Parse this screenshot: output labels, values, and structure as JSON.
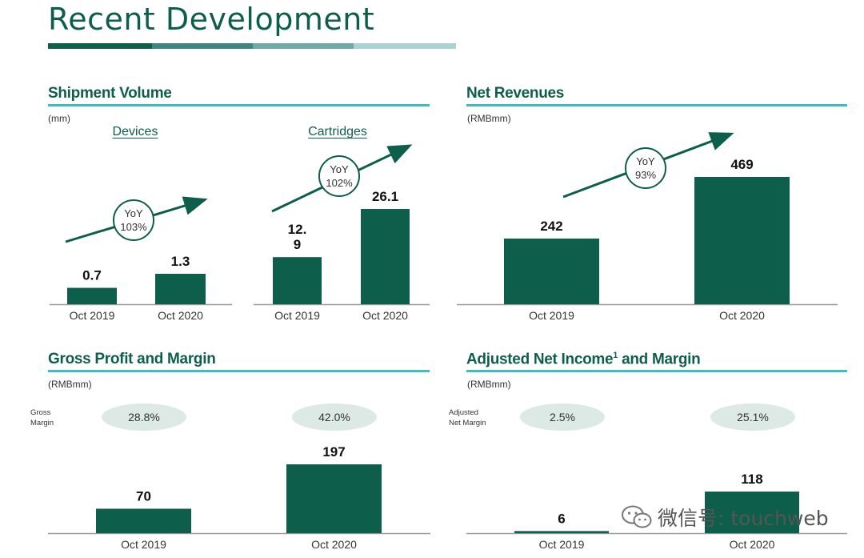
{
  "page": {
    "title": "Recent Development",
    "watermark": "微信号: touchweb"
  },
  "colors": {
    "bar": "#0e5e4c",
    "rule": "#3dbcc4",
    "pill": "#dde9e5",
    "arrow": "#0e5e4c"
  },
  "panels": {
    "shipment": {
      "title": "Shipment Volume",
      "unit": "(mm)",
      "devices_label": "Devices",
      "cartridges_label": "Cartridges",
      "devices_yoy_label": "YoY",
      "devices_yoy_value": "103%",
      "cartridges_yoy_label": "YoY",
      "cartridges_yoy_value": "102%"
    },
    "net_revenues": {
      "title": "Net Revenues",
      "unit": "(RMBmm)",
      "yoy_label": "YoY",
      "yoy_value": "93%"
    },
    "gross_profit": {
      "title": "Gross Profit and Margin",
      "unit": "(RMBmm)",
      "margin_label_line1": "Gross",
      "margin_label_line2": "Margin",
      "margins": [
        "28.8%",
        "42.0%"
      ]
    },
    "adj_net_income": {
      "title_main": "Adjusted Net Income",
      "title_sup": "1",
      "title_tail": " and Margin",
      "unit": "(RMBmm)",
      "margin_label_line1": "Adjusted",
      "margin_label_line2": "Net Margin",
      "margins": [
        "2.5%",
        "25.1%"
      ]
    }
  },
  "chart_data": [
    {
      "id": "devices",
      "type": "bar",
      "categories": [
        "Oct 2019",
        "Oct 2020"
      ],
      "values": [
        0.7,
        1.3
      ],
      "value_labels": [
        "0.7",
        "1.3"
      ],
      "ylim": [
        0,
        1.3
      ]
    },
    {
      "id": "cartridges",
      "type": "bar",
      "categories": [
        "Oct 2019",
        "Oct 2020"
      ],
      "values": [
        12.9,
        26.1
      ],
      "value_labels": [
        "12.\n9",
        "26.1"
      ],
      "ylim": [
        0,
        26.1
      ]
    },
    {
      "id": "net_revenues",
      "type": "bar",
      "categories": [
        "Oct 2019",
        "Oct 2020"
      ],
      "values": [
        242,
        469
      ],
      "value_labels": [
        "242",
        "469"
      ],
      "ylim": [
        0,
        469
      ]
    },
    {
      "id": "gross_profit",
      "type": "bar",
      "categories": [
        "Oct 2019",
        "Oct 2020"
      ],
      "values": [
        70,
        197
      ],
      "value_labels": [
        "70",
        "197"
      ],
      "ylim": [
        0,
        197
      ]
    },
    {
      "id": "adj_net_income",
      "type": "bar",
      "categories": [
        "Oct 2019",
        "Oct 2020"
      ],
      "values": [
        6,
        118
      ],
      "value_labels": [
        "6",
        "118"
      ],
      "ylim": [
        0,
        118
      ]
    }
  ]
}
